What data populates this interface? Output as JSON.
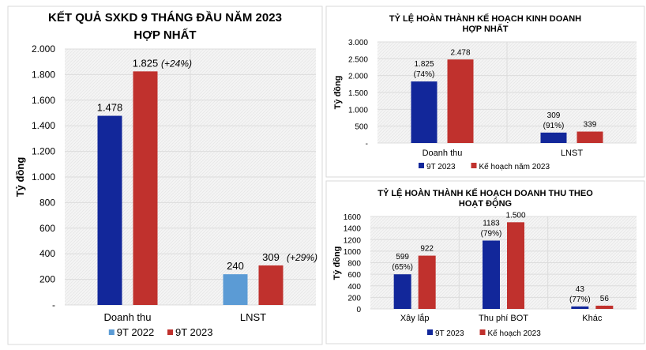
{
  "chart_data": [
    {
      "type": "bar",
      "title": [
        "KẾT QUẢ SXKD 9 THÁNG ĐẦU NĂM 2023",
        "HỢP NHẤT"
      ],
      "ylabel": "Tỷ đồng",
      "ylim": [
        0,
        2000
      ],
      "yticks": [
        "-",
        "200",
        "400",
        "600",
        "800",
        "1.000",
        "1.200",
        "1.400",
        "1.600",
        "1.800",
        "2.000"
      ],
      "categories": [
        "Doanh thu",
        "LNST"
      ],
      "grid": true,
      "legend_position": "bottom",
      "series": [
        {
          "name": "9T 2022",
          "color": "#5b9bd5",
          "values": [
            1478,
            240
          ],
          "point_colors": [
            "#12279a",
            "#5b9bd5"
          ],
          "labels": [
            [
              "1.478"
            ],
            [
              "240"
            ]
          ],
          "notes": [
            "",
            ""
          ]
        },
        {
          "name": "9T 2023",
          "color": "#c0312d",
          "values": [
            1825,
            309
          ],
          "labels": [
            [
              "1.825"
            ],
            [
              "309"
            ]
          ],
          "notes": [
            "(+24%)",
            "(+29%)"
          ]
        }
      ]
    },
    {
      "type": "bar",
      "title": [
        "TỶ LỆ HOÀN THÀNH KẾ HOẠCH KINH DOANH",
        "HỢP NHẤT"
      ],
      "ylabel": "Tỷ đồng",
      "ylim": [
        0,
        3000
      ],
      "yticks": [
        "-",
        "500",
        "1.000",
        "1.500",
        "2.000",
        "2.500",
        "3.000"
      ],
      "categories": [
        "Doanh thu",
        "LNST"
      ],
      "grid": true,
      "legend_position": "bottom",
      "series": [
        {
          "name": "9T 2023",
          "color": "#12279a",
          "values": [
            1825,
            309
          ],
          "labels": [
            [
              "1.825",
              "(74%)"
            ],
            [
              "309",
              "(91%)"
            ]
          ]
        },
        {
          "name": "Kế hoạch năm 2023",
          "color": "#c0312d",
          "values": [
            2478,
            339
          ],
          "labels": [
            [
              "2.478"
            ],
            [
              "339"
            ]
          ]
        }
      ]
    },
    {
      "type": "bar",
      "title": [
        "TỶ LỆ HOÀN THÀNH KẾ HOẠCH DOANH THU THEO",
        "HOẠT ĐỘNG"
      ],
      "ylabel": "Tỷ đồng",
      "ylim": [
        0,
        1600
      ],
      "yticks": [
        "0",
        "200",
        "400",
        "600",
        "800",
        "1000",
        "1200",
        "1400",
        "1600"
      ],
      "categories": [
        "Xây lắp",
        "Thu phí BOT",
        "Khác"
      ],
      "grid": true,
      "legend_position": "bottom",
      "series": [
        {
          "name": "9T 2023",
          "color": "#12279a",
          "values": [
            599,
            1183,
            43
          ],
          "labels": [
            [
              "599",
              "(65%)"
            ],
            [
              "1183",
              "(79%)"
            ],
            [
              "43",
              "(77%)"
            ]
          ]
        },
        {
          "name": "Kế hoạch 2023",
          "color": "#c0312d",
          "values": [
            922,
            1500,
            56
          ],
          "labels": [
            [
              "922"
            ],
            [
              "1.500"
            ],
            [
              "56"
            ]
          ]
        }
      ]
    }
  ]
}
